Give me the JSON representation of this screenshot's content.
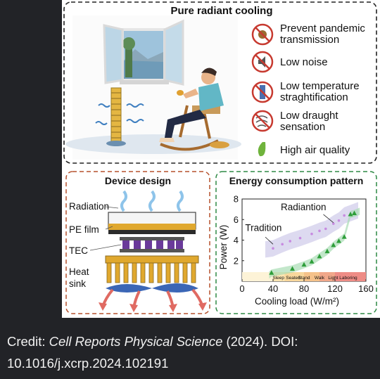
{
  "figure": {
    "top_panel": {
      "title": "Pure radiant cooling",
      "features": [
        {
          "icon": "virus-prohibited-icon",
          "line1": "Prevent pandemic",
          "line2": "transmission"
        },
        {
          "icon": "noise-prohibited-icon",
          "line1": "Low noise",
          "line2": ""
        },
        {
          "icon": "thermometer-prohibited-icon",
          "line1": "Low temperature",
          "line2": "straghtification"
        },
        {
          "icon": "draught-prohibited-icon",
          "line1": "Low draught",
          "line2": "sensation"
        },
        {
          "icon": "leaf-icon",
          "line1": "High air quality",
          "line2": ""
        }
      ]
    },
    "device_panel": {
      "title": "Device design",
      "labels": [
        "Radiation",
        "PE film",
        "TEC",
        "Heat",
        "sink"
      ]
    },
    "energy_panel": {
      "title": "Energy consumption pattern"
    }
  },
  "chart_data": {
    "type": "scatter",
    "xlabel": "Cooling load (W/m²)",
    "ylabel": "Power (W)",
    "xlim": [
      0,
      160
    ],
    "ylim": [
      0,
      8
    ],
    "x_ticks": [
      "0",
      "40",
      "80",
      "120",
      "160"
    ],
    "y_ticks": [
      "2",
      "4",
      "6",
      "8"
    ],
    "activity_bands": [
      "Sleep",
      "Seated",
      "Stand",
      "Walk",
      "Light Laboring"
    ],
    "series": [
      {
        "name": "Tradition",
        "color": "#c78be0",
        "points": [
          [
            40,
            3.2
          ],
          [
            52,
            3.6
          ],
          [
            62,
            3.9
          ],
          [
            75,
            4.2
          ],
          [
            90,
            4.6
          ],
          [
            100,
            4.9
          ],
          [
            108,
            5.1
          ],
          [
            118,
            5.6
          ],
          [
            125,
            5.9
          ],
          [
            132,
            6.4
          ]
        ]
      },
      {
        "name": "Radiantion",
        "color": "#2e9e3a",
        "points": [
          [
            38,
            0.8
          ],
          [
            65,
            1.2
          ],
          [
            80,
            1.6
          ],
          [
            90,
            1.9
          ],
          [
            100,
            2.4
          ],
          [
            110,
            2.9
          ],
          [
            118,
            3.5
          ],
          [
            125,
            3.9
          ],
          [
            132,
            4.3
          ],
          [
            140,
            6.5
          ],
          [
            145,
            6.6
          ]
        ]
      }
    ]
  },
  "caption": {
    "prefix": "Credit: ",
    "journal": "Cell Reports Physical Science",
    "suffix": " (2024). DOI:",
    "doi": "10.1016/j.xcrp.2024.102191"
  }
}
